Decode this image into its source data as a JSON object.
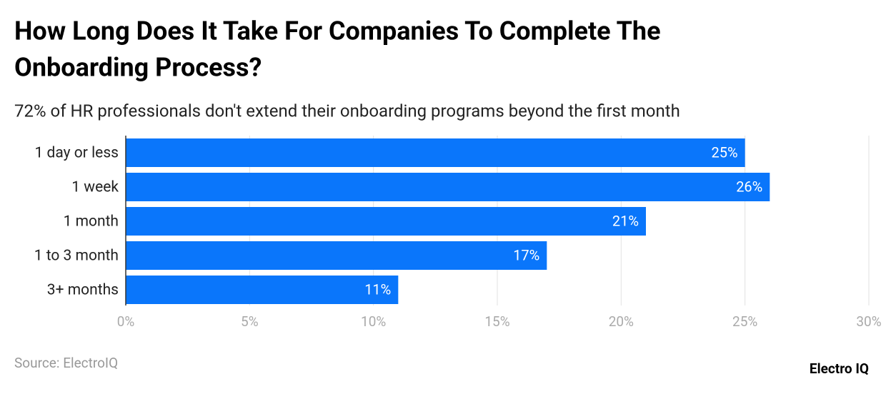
{
  "chart_data": {
    "type": "bar",
    "orientation": "horizontal",
    "title_lines": [
      "How Long Does It Take For Companies To Complete The",
      "Onboarding Process?"
    ],
    "subtitle": "72% of HR professionals don't extend their onboarding programs beyond the first month",
    "categories": [
      "1 day or less",
      "1 week",
      "1 month",
      "1 to 3 month",
      "3+ months"
    ],
    "values": [
      25,
      26,
      21,
      17,
      11
    ],
    "value_labels": [
      "25%",
      "26%",
      "21%",
      "17%",
      "11%"
    ],
    "color": "#0a76fb",
    "xlim": [
      0,
      30
    ],
    "xticks": [
      {
        "value": 0,
        "label": "0%"
      },
      {
        "value": 5,
        "label": "5%"
      },
      {
        "value": 10,
        "label": "10%"
      },
      {
        "value": 15,
        "label": "15%"
      },
      {
        "value": 20,
        "label": "20%"
      },
      {
        "value": 25,
        "label": "25%"
      },
      {
        "value": 30,
        "label": "30%"
      }
    ],
    "grid": true,
    "source": "Source: ElectroIQ",
    "brand": "Electro IQ"
  }
}
